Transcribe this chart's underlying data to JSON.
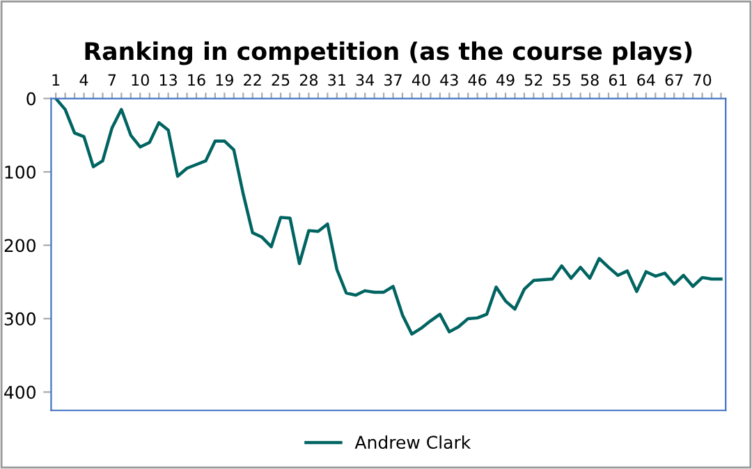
{
  "chart_data": {
    "type": "line",
    "title": "Ranking in competition (as the course plays)",
    "categories": [
      "1",
      null,
      null,
      "4",
      null,
      null,
      "7",
      null,
      null,
      "10",
      null,
      null,
      "13",
      null,
      null,
      "16",
      null,
      null,
      "19",
      null,
      null,
      "22",
      null,
      null,
      "25",
      null,
      null,
      "28",
      null,
      null,
      "31",
      null,
      null,
      "34",
      null,
      null,
      "37",
      null,
      null,
      "40",
      null,
      null,
      "43",
      null,
      null,
      "46",
      null,
      null,
      "49",
      null,
      null,
      "52",
      null,
      null,
      "55",
      null,
      null,
      "58",
      null,
      null,
      "61",
      null,
      null,
      "64",
      null,
      null,
      "67",
      null,
      null,
      "70",
      null,
      null
    ],
    "series": [
      {
        "name": "Andrew Clark",
        "color": "#006461",
        "values": [
          0,
          15,
          47,
          52,
          93,
          85,
          40,
          15,
          50,
          66,
          60,
          33,
          43,
          106,
          95,
          90,
          85,
          58,
          58,
          70,
          130,
          183,
          189,
          202,
          162,
          163,
          225,
          180,
          181,
          171,
          233,
          265,
          268,
          262,
          264,
          264,
          256,
          295,
          321,
          313,
          303,
          294,
          318,
          311,
          300,
          299,
          294,
          257,
          276,
          287,
          260,
          248,
          247,
          246,
          228,
          245,
          230,
          245,
          218,
          230,
          241,
          235,
          263,
          236,
          242,
          238,
          253,
          241,
          256,
          244,
          246,
          246
        ]
      }
    ],
    "ylim": [
      425,
      0
    ],
    "yticks": [
      0,
      100,
      200,
      300,
      400
    ],
    "grid": false,
    "legend": "bottom",
    "marker": "none",
    "line_style": "solid"
  }
}
